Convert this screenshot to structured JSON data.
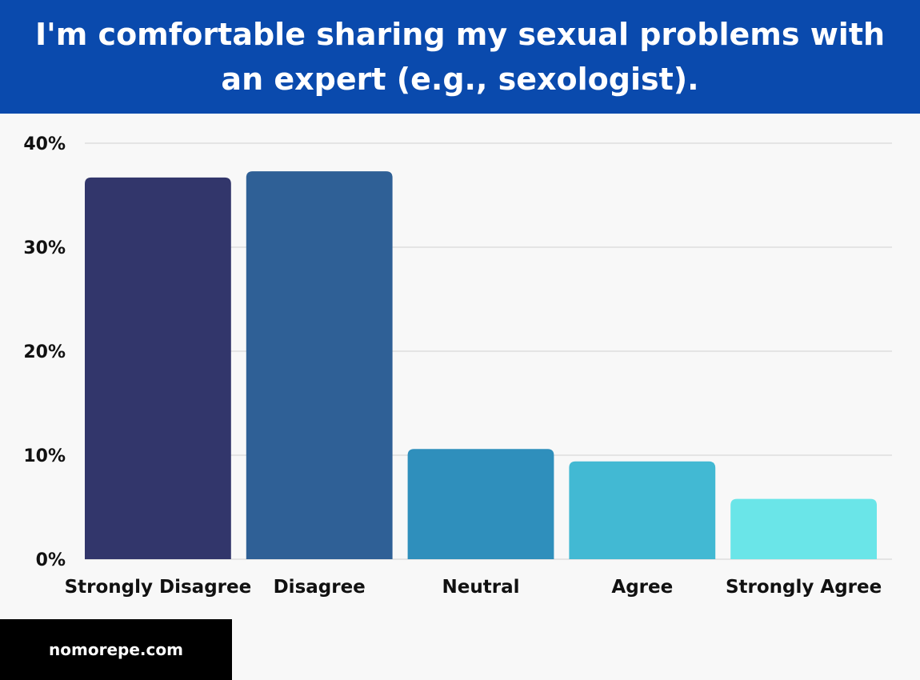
{
  "header": {
    "title": "I'm comfortable sharing my sexual problems with an expert (e.g., sexologist)."
  },
  "footer": {
    "site": "nomorepe.com"
  },
  "colors": {
    "header_bg": "#0a4aad",
    "footer_bg": "#000000",
    "background": "#f8f8f8"
  },
  "chart_data": {
    "type": "bar",
    "title": "I'm comfortable sharing my sexual problems with an expert (e.g., sexologist).",
    "categories": [
      "Strongly Disagree",
      "Disagree",
      "Neutral",
      "Agree",
      "Strongly Agree"
    ],
    "values": [
      36.7,
      37.3,
      10.6,
      9.4,
      5.8
    ],
    "bar_colors": [
      "#32366b",
      "#2f6096",
      "#2f8fbc",
      "#42b9d3",
      "#6ae5e8"
    ],
    "yticks": [
      "0%",
      "10%",
      "20%",
      "30%",
      "40%"
    ],
    "ylim": [
      0,
      40
    ],
    "grid": true,
    "legend": "none"
  }
}
